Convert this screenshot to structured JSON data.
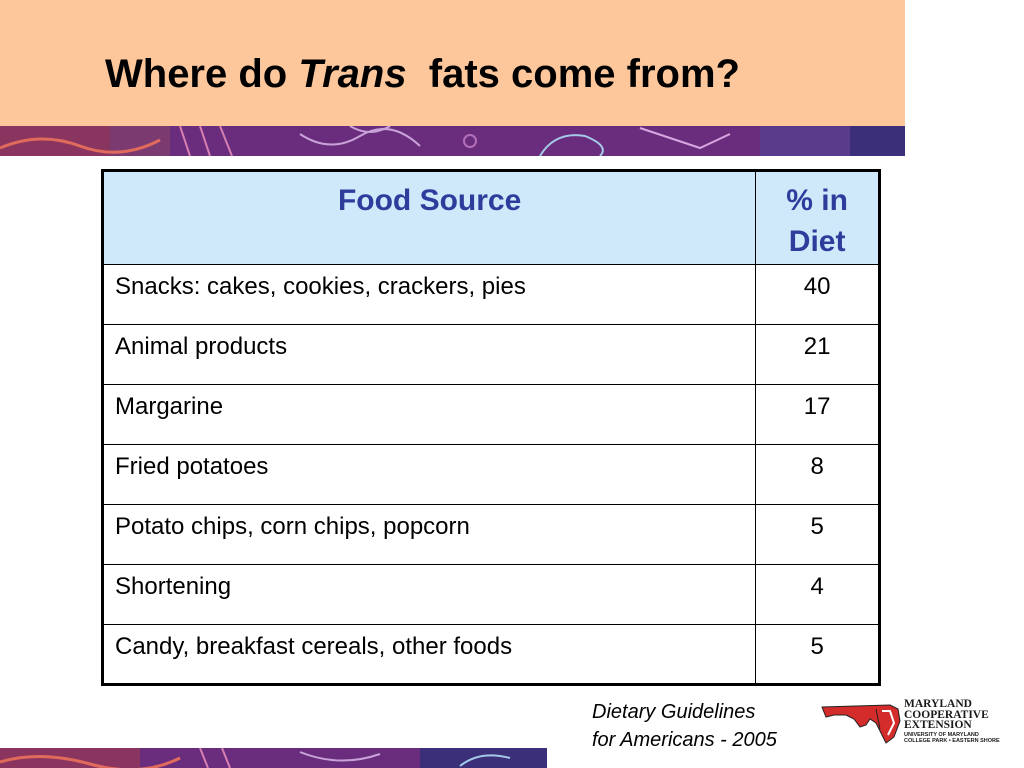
{
  "title": {
    "part1": "Where do",
    "emphasis": "Trans",
    "part2": "fats come from?"
  },
  "table": {
    "headers": {
      "source": "Food Source",
      "pct_line1": "% in",
      "pct_line2": "Diet"
    },
    "rows": [
      {
        "source": "Snacks:  cakes, cookies, crackers, pies",
        "pct": "40"
      },
      {
        "source": "Animal products",
        "pct": "21"
      },
      {
        "source": "Margarine",
        "pct": "17"
      },
      {
        "source": "Fried potatoes",
        "pct": "8"
      },
      {
        "source": "Potato chips, corn chips, popcorn",
        "pct": "5"
      },
      {
        "source": "Shortening",
        "pct": "4"
      },
      {
        "source": "Candy, breakfast cereals, other foods",
        "pct": "5"
      }
    ]
  },
  "source_note": {
    "line1": "Dietary Guidelines",
    "line2": "for Americans - 2005"
  },
  "logo": {
    "line1": "MARYLAND",
    "line2": "COOPERATIVE",
    "line3": "EXTENSION",
    "line4": "UNIVERSITY OF MARYLAND",
    "line5": "COLLEGE PARK • EASTERN SHORE"
  },
  "colors": {
    "title_band": "#fdc79b",
    "header_bg": "#cfe9fb",
    "header_text": "#2e3c9c",
    "decorative_strip": "#6a2d7d"
  }
}
